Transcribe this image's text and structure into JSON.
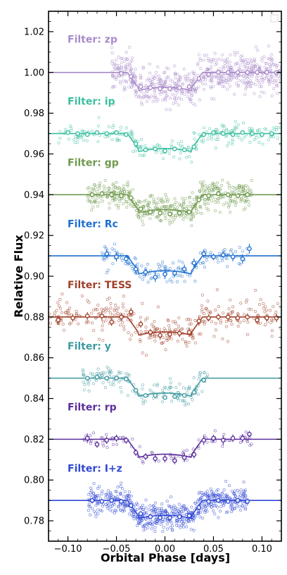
{
  "chart_data": {
    "type": "scatter",
    "xlabel": "Orbital Phase [days]",
    "ylabel": "Relative Flux",
    "xlim": [
      -0.12,
      0.12
    ],
    "ylim": [
      0.77,
      1.03
    ],
    "xticks": [
      -0.1,
      -0.05,
      0.0,
      0.05,
      0.1
    ],
    "xtick_labels": [
      "−0.10",
      "−0.05",
      "0.00",
      "0.05",
      "0.10"
    ],
    "yticks": [
      0.78,
      0.8,
      0.82,
      0.84,
      0.86,
      0.88,
      0.9,
      0.92,
      0.94,
      0.96,
      0.98,
      1.0,
      1.02
    ],
    "ytick_labels": [
      "0.78",
      "0.80",
      "0.82",
      "0.84",
      "0.86",
      "0.88",
      "0.90",
      "0.92",
      "0.94",
      "0.96",
      "0.98",
      "1.00",
      "1.02"
    ],
    "grid": false,
    "transit": {
      "depth": 0.0085,
      "t_total": 0.0775,
      "t_flat": 0.0555
    },
    "series": [
      {
        "name": "Filter: zp",
        "label": "Filter: zp",
        "baseline": 1.0,
        "label_y": 1.016,
        "color": "#a98bc9",
        "x_range": [
          -0.055,
          0.12
        ],
        "n": 650,
        "noise": 0.0045,
        "density": 1.0,
        "binned": [
          [
            -0.045,
            0.9995
          ],
          [
            -0.035,
            0.998
          ],
          [
            -0.025,
            0.993
          ],
          [
            -0.015,
            0.9925
          ],
          [
            -0.005,
            0.992
          ],
          [
            0.005,
            0.992
          ],
          [
            0.015,
            0.9925
          ],
          [
            0.025,
            0.993
          ],
          [
            0.035,
            0.997
          ],
          [
            0.045,
            0.999
          ],
          [
            0.055,
            1.0
          ],
          [
            0.065,
            1.0
          ],
          [
            0.075,
            1.0
          ],
          [
            0.085,
            1.0
          ],
          [
            0.095,
            1.0
          ],
          [
            0.105,
            1.0
          ],
          [
            0.115,
            1.0
          ]
        ],
        "error_bars": false,
        "line_start": -0.12
      },
      {
        "name": "Filter: ip",
        "label": "Filter: ip",
        "baseline": 0.97,
        "label_y": 0.9855,
        "color": "#3bbfa0",
        "x_range": [
          -0.11,
          0.12
        ],
        "n": 240,
        "noise": 0.0025,
        "density": 0.5,
        "binned": [
          [
            -0.1,
            0.9705
          ],
          [
            -0.09,
            0.97
          ],
          [
            -0.08,
            0.9695
          ],
          [
            -0.07,
            0.9705
          ],
          [
            -0.06,
            0.97
          ],
          [
            -0.05,
            0.9705
          ],
          [
            -0.04,
            0.9695
          ],
          [
            -0.03,
            0.965
          ],
          [
            -0.02,
            0.962
          ],
          [
            -0.01,
            0.9625
          ],
          [
            0.0,
            0.9615
          ],
          [
            0.01,
            0.9625
          ],
          [
            0.02,
            0.962
          ],
          [
            0.03,
            0.9635
          ],
          [
            0.04,
            0.9695
          ],
          [
            0.05,
            0.9705
          ],
          [
            0.06,
            0.97
          ],
          [
            0.07,
            0.9695
          ],
          [
            0.08,
            0.9705
          ],
          [
            0.09,
            0.97
          ],
          [
            0.1,
            0.9695
          ],
          [
            0.11,
            0.97
          ]
        ],
        "error_bars": false,
        "line_start": -0.12
      },
      {
        "name": "Filter: gp",
        "label": "Filter: gp",
        "baseline": 0.94,
        "label_y": 0.9555,
        "color": "#6f9a4e",
        "x_range": [
          -0.08,
          0.09
        ],
        "n": 480,
        "noise": 0.0033,
        "density": 1.0,
        "binned": [
          [
            -0.075,
            0.94
          ],
          [
            -0.065,
            0.9405
          ],
          [
            -0.055,
            0.94
          ],
          [
            -0.045,
            0.9395
          ],
          [
            -0.035,
            0.9385
          ],
          [
            -0.025,
            0.933
          ],
          [
            -0.015,
            0.9315
          ],
          [
            -0.005,
            0.931
          ],
          [
            0.005,
            0.9305
          ],
          [
            0.015,
            0.931
          ],
          [
            0.025,
            0.9315
          ],
          [
            0.035,
            0.9375
          ],
          [
            0.045,
            0.9395
          ],
          [
            0.055,
            0.9405
          ],
          [
            0.065,
            0.94
          ],
          [
            0.075,
            0.9395
          ],
          [
            0.085,
            0.94
          ]
        ],
        "error_bars": false,
        "line_start": -0.12
      },
      {
        "name": "Filter: Rc",
        "label": "Filter: Rc",
        "baseline": 0.91,
        "label_y": 0.9255,
        "color": "#1f6fd0",
        "x_range": [
          -0.065,
          0.085
        ],
        "n": 150,
        "noise": 0.0025,
        "density": 0.5,
        "binned": [
          [
            -0.06,
            0.911
          ],
          [
            -0.05,
            0.9095
          ],
          [
            -0.04,
            0.9085
          ],
          [
            -0.03,
            0.9035
          ],
          [
            -0.02,
            0.902
          ],
          [
            -0.01,
            0.8995
          ],
          [
            0.0,
            0.901
          ],
          [
            0.01,
            0.9015
          ],
          [
            0.02,
            0.9035
          ],
          [
            0.03,
            0.9065
          ],
          [
            0.04,
            0.911
          ],
          [
            0.05,
            0.9095
          ],
          [
            0.06,
            0.9105
          ],
          [
            0.07,
            0.9095
          ],
          [
            0.08,
            0.9085
          ],
          [
            0.087,
            0.9135
          ]
        ],
        "error_bars": true,
        "line_start": -0.12
      },
      {
        "name": "Filter: TESS",
        "label": "Filter: TESS",
        "baseline": 0.88,
        "label_y": 0.8955,
        "color": "#a0402a",
        "x_range": [
          -0.12,
          0.12
        ],
        "n": 310,
        "noise": 0.0045,
        "density": 0.5,
        "binned": [
          [
            -0.11,
            0.8785
          ],
          [
            -0.095,
            0.8795
          ],
          [
            -0.08,
            0.8805
          ],
          [
            -0.065,
            0.8805
          ],
          [
            -0.055,
            0.8775
          ],
          [
            -0.045,
            0.88
          ],
          [
            -0.035,
            0.8825
          ],
          [
            -0.025,
            0.8765
          ],
          [
            -0.015,
            0.8725
          ],
          [
            -0.005,
            0.871
          ],
          [
            0.005,
            0.8715
          ],
          [
            0.015,
            0.872
          ],
          [
            0.025,
            0.8725
          ],
          [
            0.035,
            0.878
          ],
          [
            0.045,
            0.8795
          ],
          [
            0.055,
            0.88
          ],
          [
            0.065,
            0.88
          ],
          [
            0.075,
            0.8795
          ],
          [
            0.085,
            0.88
          ],
          [
            0.095,
            0.8785
          ],
          [
            0.105,
            0.8795
          ],
          [
            0.115,
            0.8795
          ]
        ],
        "error_bars": true,
        "line_start": -0.12
      },
      {
        "name": "Filter: y",
        "label": "Filter: y",
        "baseline": 0.85,
        "label_y": 0.8655,
        "color": "#3f9aa0",
        "x_range": [
          -0.085,
          0.045
        ],
        "n": 160,
        "noise": 0.0027,
        "density": 0.5,
        "binned": [
          [
            -0.08,
            0.85
          ],
          [
            -0.07,
            0.8505
          ],
          [
            -0.06,
            0.85
          ],
          [
            -0.05,
            0.85
          ],
          [
            -0.04,
            0.8495
          ],
          [
            -0.03,
            0.844
          ],
          [
            -0.02,
            0.8415
          ],
          [
            -0.01,
            0.8415
          ],
          [
            0.0,
            0.8405
          ],
          [
            0.01,
            0.841
          ],
          [
            0.02,
            0.8415
          ],
          [
            0.03,
            0.843
          ],
          [
            0.04,
            0.849
          ]
        ],
        "error_bars": false,
        "line_start": -0.12
      },
      {
        "name": "Filter: rp",
        "label": "Filter: rp",
        "baseline": 0.82,
        "label_y": 0.8355,
        "color": "#5b2d9c",
        "x_range": [
          -0.085,
          0.09
        ],
        "n": 90,
        "noise": 0.0018,
        "density": 0.5,
        "binned": [
          [
            -0.08,
            0.8205
          ],
          [
            -0.07,
            0.8175
          ],
          [
            -0.06,
            0.8195
          ],
          [
            -0.05,
            0.8205
          ],
          [
            -0.04,
            0.8195
          ],
          [
            -0.03,
            0.8135
          ],
          [
            -0.02,
            0.8115
          ],
          [
            -0.01,
            0.8105
          ],
          [
            0.0,
            0.8105
          ],
          [
            0.01,
            0.8095
          ],
          [
            0.02,
            0.811
          ],
          [
            0.03,
            0.8125
          ],
          [
            0.04,
            0.8195
          ],
          [
            0.05,
            0.8205
          ],
          [
            0.06,
            0.8195
          ],
          [
            0.07,
            0.8205
          ],
          [
            0.08,
            0.8205
          ],
          [
            0.087,
            0.8225
          ]
        ],
        "error_bars": true,
        "line_start": -0.12
      },
      {
        "name": "Filter: I+z",
        "label": "Filter: I+z",
        "baseline": 0.79,
        "label_y": 0.8055,
        "color": "#3048d4",
        "x_range": [
          -0.08,
          0.085
        ],
        "n": 600,
        "noise": 0.0033,
        "density": 1.0,
        "binned": [
          [
            -0.075,
            0.79
          ],
          [
            -0.065,
            0.7895
          ],
          [
            -0.055,
            0.79
          ],
          [
            -0.045,
            0.7895
          ],
          [
            -0.035,
            0.7875
          ],
          [
            -0.025,
            0.7835
          ],
          [
            -0.015,
            0.782
          ],
          [
            -0.005,
            0.7815
          ],
          [
            0.005,
            0.7815
          ],
          [
            0.015,
            0.782
          ],
          [
            0.025,
            0.7825
          ],
          [
            0.035,
            0.7865
          ],
          [
            0.045,
            0.7895
          ],
          [
            0.055,
            0.79
          ],
          [
            0.065,
            0.7895
          ],
          [
            0.075,
            0.79
          ],
          [
            0.085,
            0.7895
          ]
        ],
        "error_bars": false,
        "line_start": -0.12
      }
    ]
  }
}
